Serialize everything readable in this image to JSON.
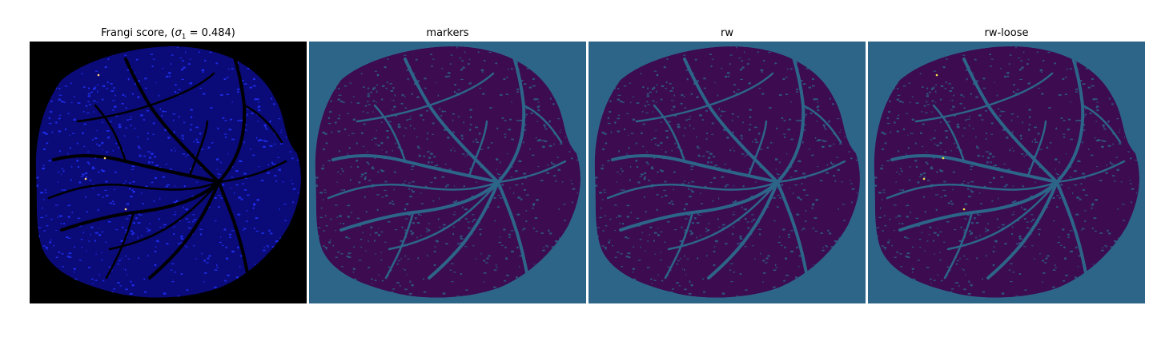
{
  "figure": {
    "panels": [
      {
        "id": "frangi",
        "title_prefix": "Frangi score, (",
        "sigma_symbol": "σ",
        "sigma_sub": "1",
        "title_suffix": " = 0.484)",
        "background": "#000000",
        "fill": "#0a0a78",
        "vessel": "#000000",
        "speck": "#2233ff",
        "highlight": "#ffd27a"
      },
      {
        "id": "markers",
        "title": "markers",
        "background": "#2d6589",
        "fill": "#3c0b50",
        "vessel": "#2d6589",
        "speck": "#2d6589",
        "highlight": "#2d6589"
      },
      {
        "id": "rw",
        "title": "rw",
        "background": "#2d6589",
        "fill": "#3c0b50",
        "vessel": "#2d6589",
        "speck": "#2d6589",
        "highlight": "#2d6589"
      },
      {
        "id": "rw-loose",
        "title": "rw-loose",
        "background": "#2d6589",
        "fill": "#3c0b50",
        "vessel": "#2d6589",
        "speck": "#2d6589",
        "highlight": "#f4e642"
      }
    ]
  }
}
